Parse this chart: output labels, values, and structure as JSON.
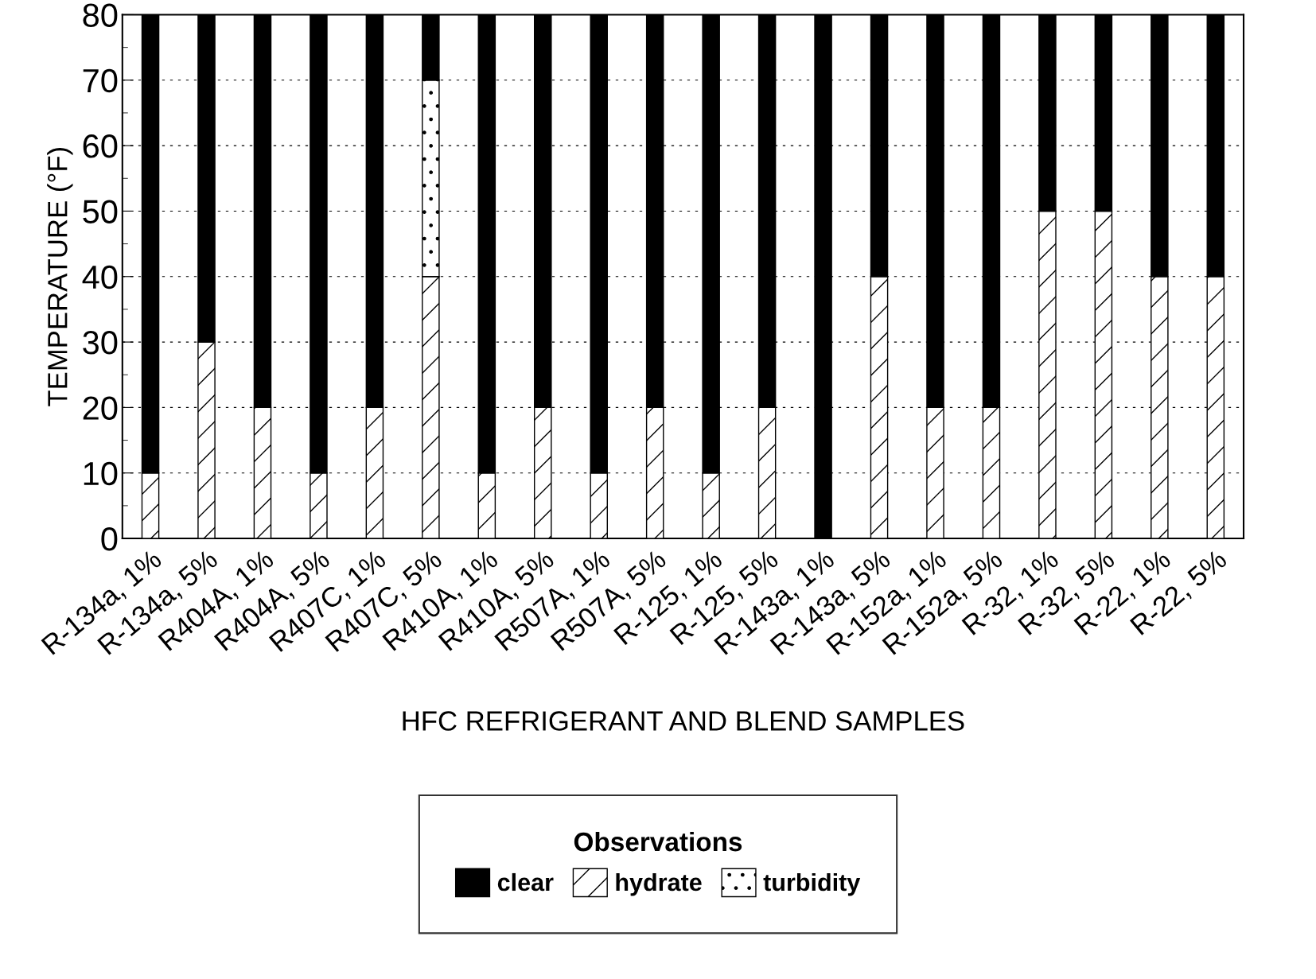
{
  "chart_data": {
    "type": "bar",
    "stacked": true,
    "xlabel": "HFC REFRIGERANT AND BLEND SAMPLES",
    "ylabel": "TEMPERATURE (°F)",
    "legend_title": "Observations",
    "legend": "bottom",
    "grid": "y",
    "categories": [
      "R-134a, 1%",
      "R-134a, 5%",
      "R404A, 1%",
      "R404A, 5%",
      "R407C, 1%",
      "R407C, 5%",
      "R410A, 1%",
      "R410A, 5%",
      "R507A, 1%",
      "R507A, 5%",
      "R-125, 1%",
      "R-125, 5%",
      "R-143a, 1%",
      "R-143a, 5%",
      "R-152a, 1%",
      "R-152a, 5%",
      "R-32, 1%",
      "R-32, 5%",
      "R-22, 1%",
      "R-22, 5%"
    ],
    "series": [
      {
        "name": "hydrate",
        "color": "#000000",
        "values": [
          10,
          30,
          20,
          10,
          20,
          40,
          10,
          20,
          10,
          20,
          10,
          20,
          0,
          40,
          20,
          20,
          50,
          50,
          40,
          40
        ]
      },
      {
        "name": "turbidity",
        "color": "#000000",
        "values": [
          0,
          0,
          0,
          0,
          0,
          30,
          0,
          0,
          0,
          0,
          0,
          0,
          0,
          0,
          0,
          0,
          0,
          0,
          0,
          0
        ]
      },
      {
        "name": "clear",
        "color": "#000000",
        "values": [
          70,
          50,
          60,
          70,
          60,
          10,
          70,
          60,
          70,
          60,
          70,
          60,
          80,
          40,
          60,
          60,
          30,
          30,
          40,
          40
        ]
      }
    ],
    "ylim": [
      0,
      80
    ],
    "yticks": [
      0,
      10,
      20,
      30,
      40,
      50,
      60,
      70,
      80
    ]
  }
}
